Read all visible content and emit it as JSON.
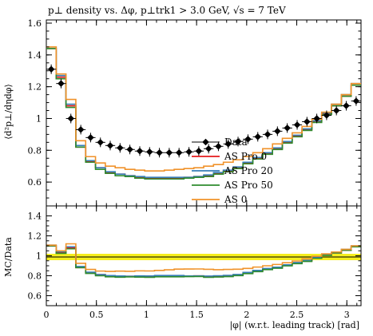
{
  "chart_data": {
    "type": "line",
    "title": "p⊥ density vs. Δφ, p⊥trk1 > 3.0 GeV, √s = 7 TeV",
    "xlabel": "|φ| (w.r.t. leading track) [rad]",
    "ylabel_main": "⟨d²p⊥/dηdφ⟩",
    "ylabel_ratio": "MC/Data",
    "xlim": [
      0,
      3.1416
    ],
    "ylim_main": [
      0.45,
      1.62
    ],
    "ylim_ratio": [
      0.5,
      1.5
    ],
    "x_ticks": [
      "0",
      "0.5",
      "1",
      "1.5",
      "2",
      "2.5",
      "3"
    ],
    "y_ticks_main": [
      "0.6",
      "0.8",
      "1",
      "1.2",
      "1.4",
      "1.6"
    ],
    "y_ticks_ratio": [
      "0.6",
      "0.8",
      "1",
      "1.2",
      "1.4"
    ],
    "legend_position": "center-right",
    "bins": 32,
    "x": [
      0.049,
      0.147,
      0.245,
      0.344,
      0.442,
      0.54,
      0.638,
      0.736,
      0.834,
      0.933,
      1.031,
      1.129,
      1.227,
      1.325,
      1.424,
      1.522,
      1.62,
      1.718,
      1.816,
      1.914,
      2.013,
      2.111,
      2.209,
      2.307,
      2.405,
      2.504,
      2.602,
      2.7,
      2.798,
      2.896,
      2.994,
      3.093
    ],
    "data_points": [
      1.31,
      1.22,
      1.0,
      0.93,
      0.88,
      0.85,
      0.83,
      0.815,
      0.805,
      0.795,
      0.79,
      0.785,
      0.785,
      0.785,
      0.79,
      0.795,
      0.81,
      0.825,
      0.84,
      0.855,
      0.87,
      0.885,
      0.9,
      0.92,
      0.94,
      0.96,
      0.98,
      1.0,
      1.02,
      1.05,
      1.08,
      1.11
    ],
    "series": [
      {
        "name": "AS Pro 0",
        "color": "#e41a1c",
        "values": [
          1.44,
          1.26,
          1.08,
          0.82,
          0.73,
          0.69,
          0.66,
          0.65,
          0.64,
          0.63,
          0.625,
          0.625,
          0.625,
          0.625,
          0.63,
          0.635,
          0.64,
          0.655,
          0.67,
          0.69,
          0.72,
          0.75,
          0.78,
          0.81,
          0.85,
          0.89,
          0.93,
          0.98,
          1.03,
          1.08,
          1.14,
          1.21
        ]
      },
      {
        "name": "AS Pro 20",
        "color": "#377eb8",
        "values": [
          1.45,
          1.27,
          1.09,
          0.83,
          0.735,
          0.69,
          0.665,
          0.65,
          0.64,
          0.635,
          0.63,
          0.63,
          0.63,
          0.63,
          0.63,
          0.635,
          0.645,
          0.66,
          0.675,
          0.695,
          0.725,
          0.755,
          0.785,
          0.815,
          0.855,
          0.895,
          0.935,
          0.985,
          1.035,
          1.09,
          1.15,
          1.22
        ]
      },
      {
        "name": "AS Pro 50",
        "color": "#2e8b2e",
        "values": [
          1.44,
          1.25,
          1.07,
          0.82,
          0.725,
          0.68,
          0.655,
          0.64,
          0.635,
          0.625,
          0.62,
          0.62,
          0.62,
          0.62,
          0.625,
          0.63,
          0.635,
          0.65,
          0.665,
          0.685,
          0.715,
          0.745,
          0.775,
          0.805,
          0.845,
          0.885,
          0.925,
          0.975,
          1.025,
          1.08,
          1.14,
          1.21
        ]
      },
      {
        "name": "AS 0",
        "color": "#f0922a",
        "values": [
          1.45,
          1.28,
          1.12,
          0.86,
          0.76,
          0.72,
          0.7,
          0.69,
          0.68,
          0.675,
          0.67,
          0.67,
          0.675,
          0.68,
          0.685,
          0.69,
          0.7,
          0.71,
          0.725,
          0.74,
          0.76,
          0.785,
          0.81,
          0.84,
          0.875,
          0.91,
          0.95,
          0.995,
          1.04,
          1.09,
          1.15,
          1.22
        ]
      }
    ],
    "data_name": "Data"
  }
}
